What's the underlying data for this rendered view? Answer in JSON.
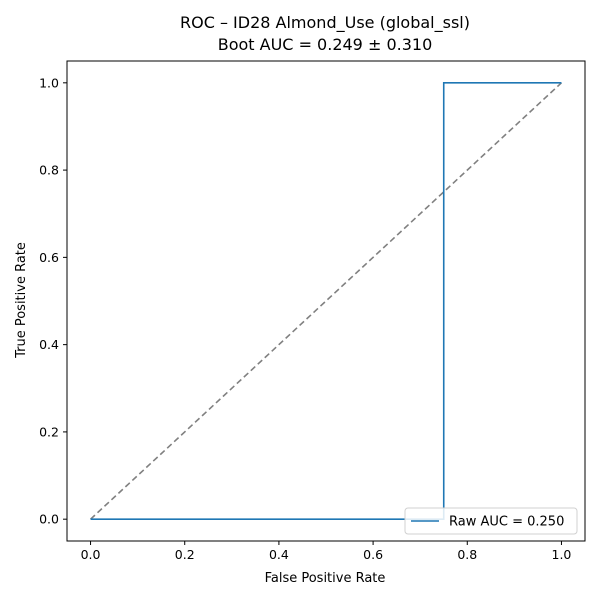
{
  "chart_data": {
    "type": "line",
    "title": "ROC – ID28 Almond_Use (global_ssl)",
    "subtitle": "Boot AUC = 0.249 ± 0.310",
    "xlabel": "False Positive Rate",
    "ylabel": "True Positive Rate",
    "xlim": [
      -0.05,
      1.05
    ],
    "ylim": [
      -0.05,
      1.05
    ],
    "xticks": [
      0.0,
      0.2,
      0.4,
      0.6,
      0.8,
      1.0
    ],
    "xtick_labels": [
      "0.0",
      "0.2",
      "0.4",
      "0.6",
      "0.8",
      "1.0"
    ],
    "yticks": [
      0.0,
      0.2,
      0.4,
      0.6,
      0.8,
      1.0
    ],
    "ytick_labels": [
      "0.0",
      "0.2",
      "0.4",
      "0.6",
      "0.8",
      "1.0"
    ],
    "grid": false,
    "legend_position": "bottom-right",
    "series": [
      {
        "name": "Raw AUC = 0.250",
        "color": "#1f77b4",
        "style": "solid",
        "x": [
          0.0,
          0.75,
          0.75,
          1.0
        ],
        "y": [
          0.0,
          0.0,
          1.0,
          1.0
        ]
      },
      {
        "color": "#808080",
        "style": "dashed",
        "x": [
          0.0,
          1.0
        ],
        "y": [
          0.0,
          1.0
        ]
      }
    ]
  }
}
